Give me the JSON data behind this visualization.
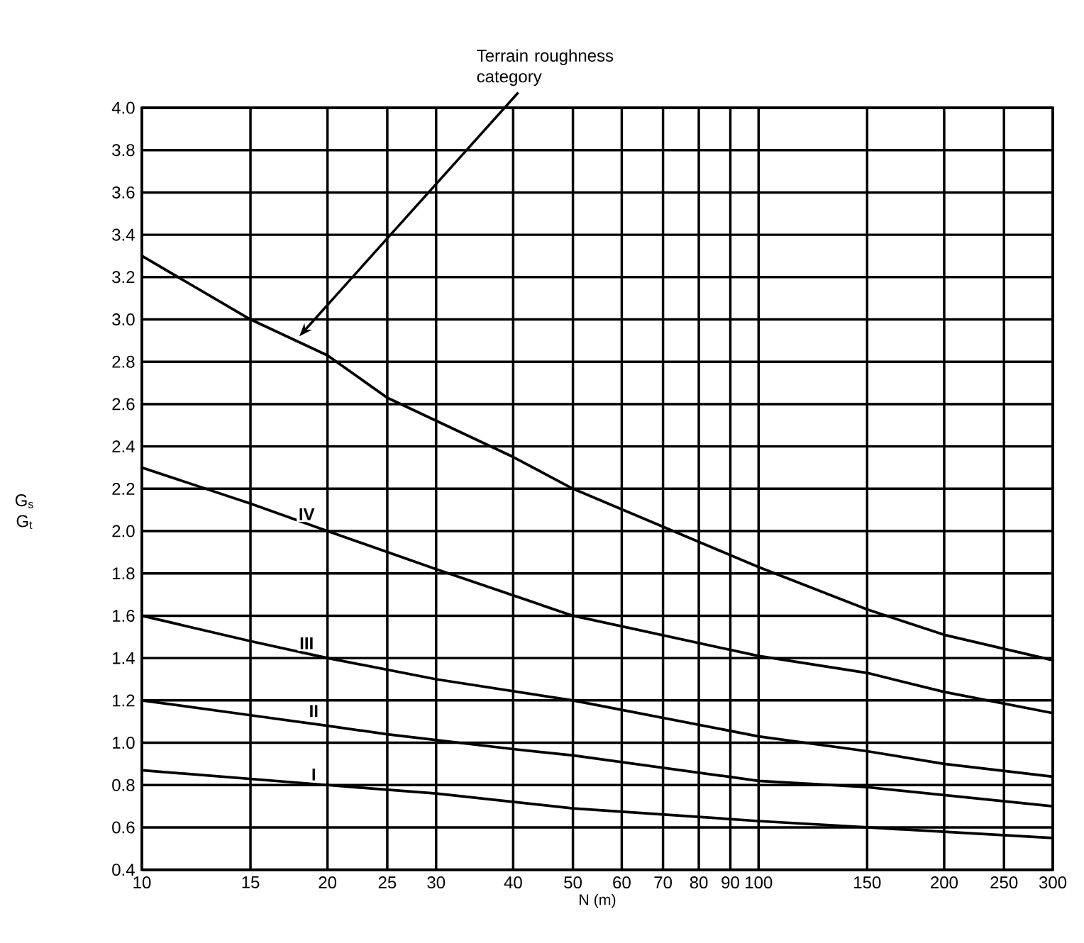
{
  "chart_data": {
    "type": "line",
    "xlabel": "N (m)",
    "ylabel": "G$_{s}$ G$_{t}$",
    "log": "x",
    "xlim": [
      10,
      300
    ],
    "ylim": [
      0.4,
      4.0
    ],
    "xticks": [
      10,
      15,
      20,
      25,
      30,
      40,
      50,
      60,
      70,
      80,
      90,
      100,
      150,
      200,
      250,
      300
    ],
    "yticks": [
      {
        "value": 0.4,
        "label": "0.4"
      },
      {
        "value": 0.6,
        "label": "0.6"
      },
      {
        "value": 0.8,
        "label": "0.8"
      },
      {
        "value": 1.0,
        "label": "1.0"
      },
      {
        "value": 1.2,
        "label": "1.2"
      },
      {
        "value": 1.4,
        "label": "1.4"
      },
      {
        "value": 1.6,
        "label": "1.6"
      },
      {
        "value": 1.8,
        "label": "1.8"
      },
      {
        "value": 2.0,
        "label": "2.0"
      },
      {
        "value": 2.2,
        "label": "2.2"
      },
      {
        "value": 2.4,
        "label": "2.4"
      },
      {
        "value": 2.6,
        "label": "2.6"
      },
      {
        "value": 2.8,
        "label": "2.8"
      },
      {
        "value": 3.0,
        "label": "3.0"
      },
      {
        "value": 3.2,
        "label": "3.2"
      },
      {
        "value": 3.4,
        "label": "3.4"
      },
      {
        "value": 3.6,
        "label": "3.6"
      },
      {
        "value": 3.8,
        "label": "3.8"
      },
      {
        "value": 4.0,
        "label": "4.0"
      }
    ],
    "grid": true,
    "marker": "none",
    "line_style": "solid",
    "series": [
      {
        "color": "#000000",
        "x": [
          10,
          15,
          20,
          25,
          40,
          50,
          100,
          150,
          200,
          300
        ],
        "values": [
          3.3,
          3.0,
          2.83,
          2.63,
          2.35,
          2.2,
          1.83,
          1.63,
          1.51,
          1.39
        ]
      },
      {
        "color": "#000000",
        "x": [
          10,
          15,
          20,
          30,
          50,
          100,
          150,
          200,
          300
        ],
        "values": [
          2.3,
          2.13,
          2.0,
          1.82,
          1.6,
          1.41,
          1.33,
          1.24,
          1.14
        ]
      },
      {
        "color": "#000000",
        "x": [
          10,
          15,
          20,
          30,
          50,
          100,
          150,
          200,
          300
        ],
        "values": [
          1.6,
          1.48,
          1.4,
          1.3,
          1.2,
          1.03,
          0.96,
          0.9,
          0.84
        ]
      },
      {
        "color": "#000000",
        "x": [
          10,
          15,
          20,
          25,
          40,
          50,
          100,
          150,
          300
        ],
        "values": [
          1.2,
          1.13,
          1.08,
          1.04,
          0.97,
          0.94,
          0.82,
          0.79,
          0.7
        ]
      },
      {
        "color": "#000000",
        "x": [
          10,
          20,
          30,
          50,
          100,
          150,
          300
        ],
        "values": [
          0.87,
          0.8,
          0.76,
          0.69,
          0.63,
          0.6,
          0.55
        ]
      }
    ],
    "annotations": [
      {
        "text": "Terrain roughness category",
        "x": 18,
        "y": 2.92
      },
      {
        "text": "IV",
        "x": 18.5,
        "y": 2.08
      },
      {
        "text": "III",
        "x": 18.5,
        "y": 1.47
      },
      {
        "text": "II",
        "x": 19,
        "y": 1.15
      },
      {
        "text": "I",
        "x": 19,
        "y": 0.85
      }
    ]
  }
}
